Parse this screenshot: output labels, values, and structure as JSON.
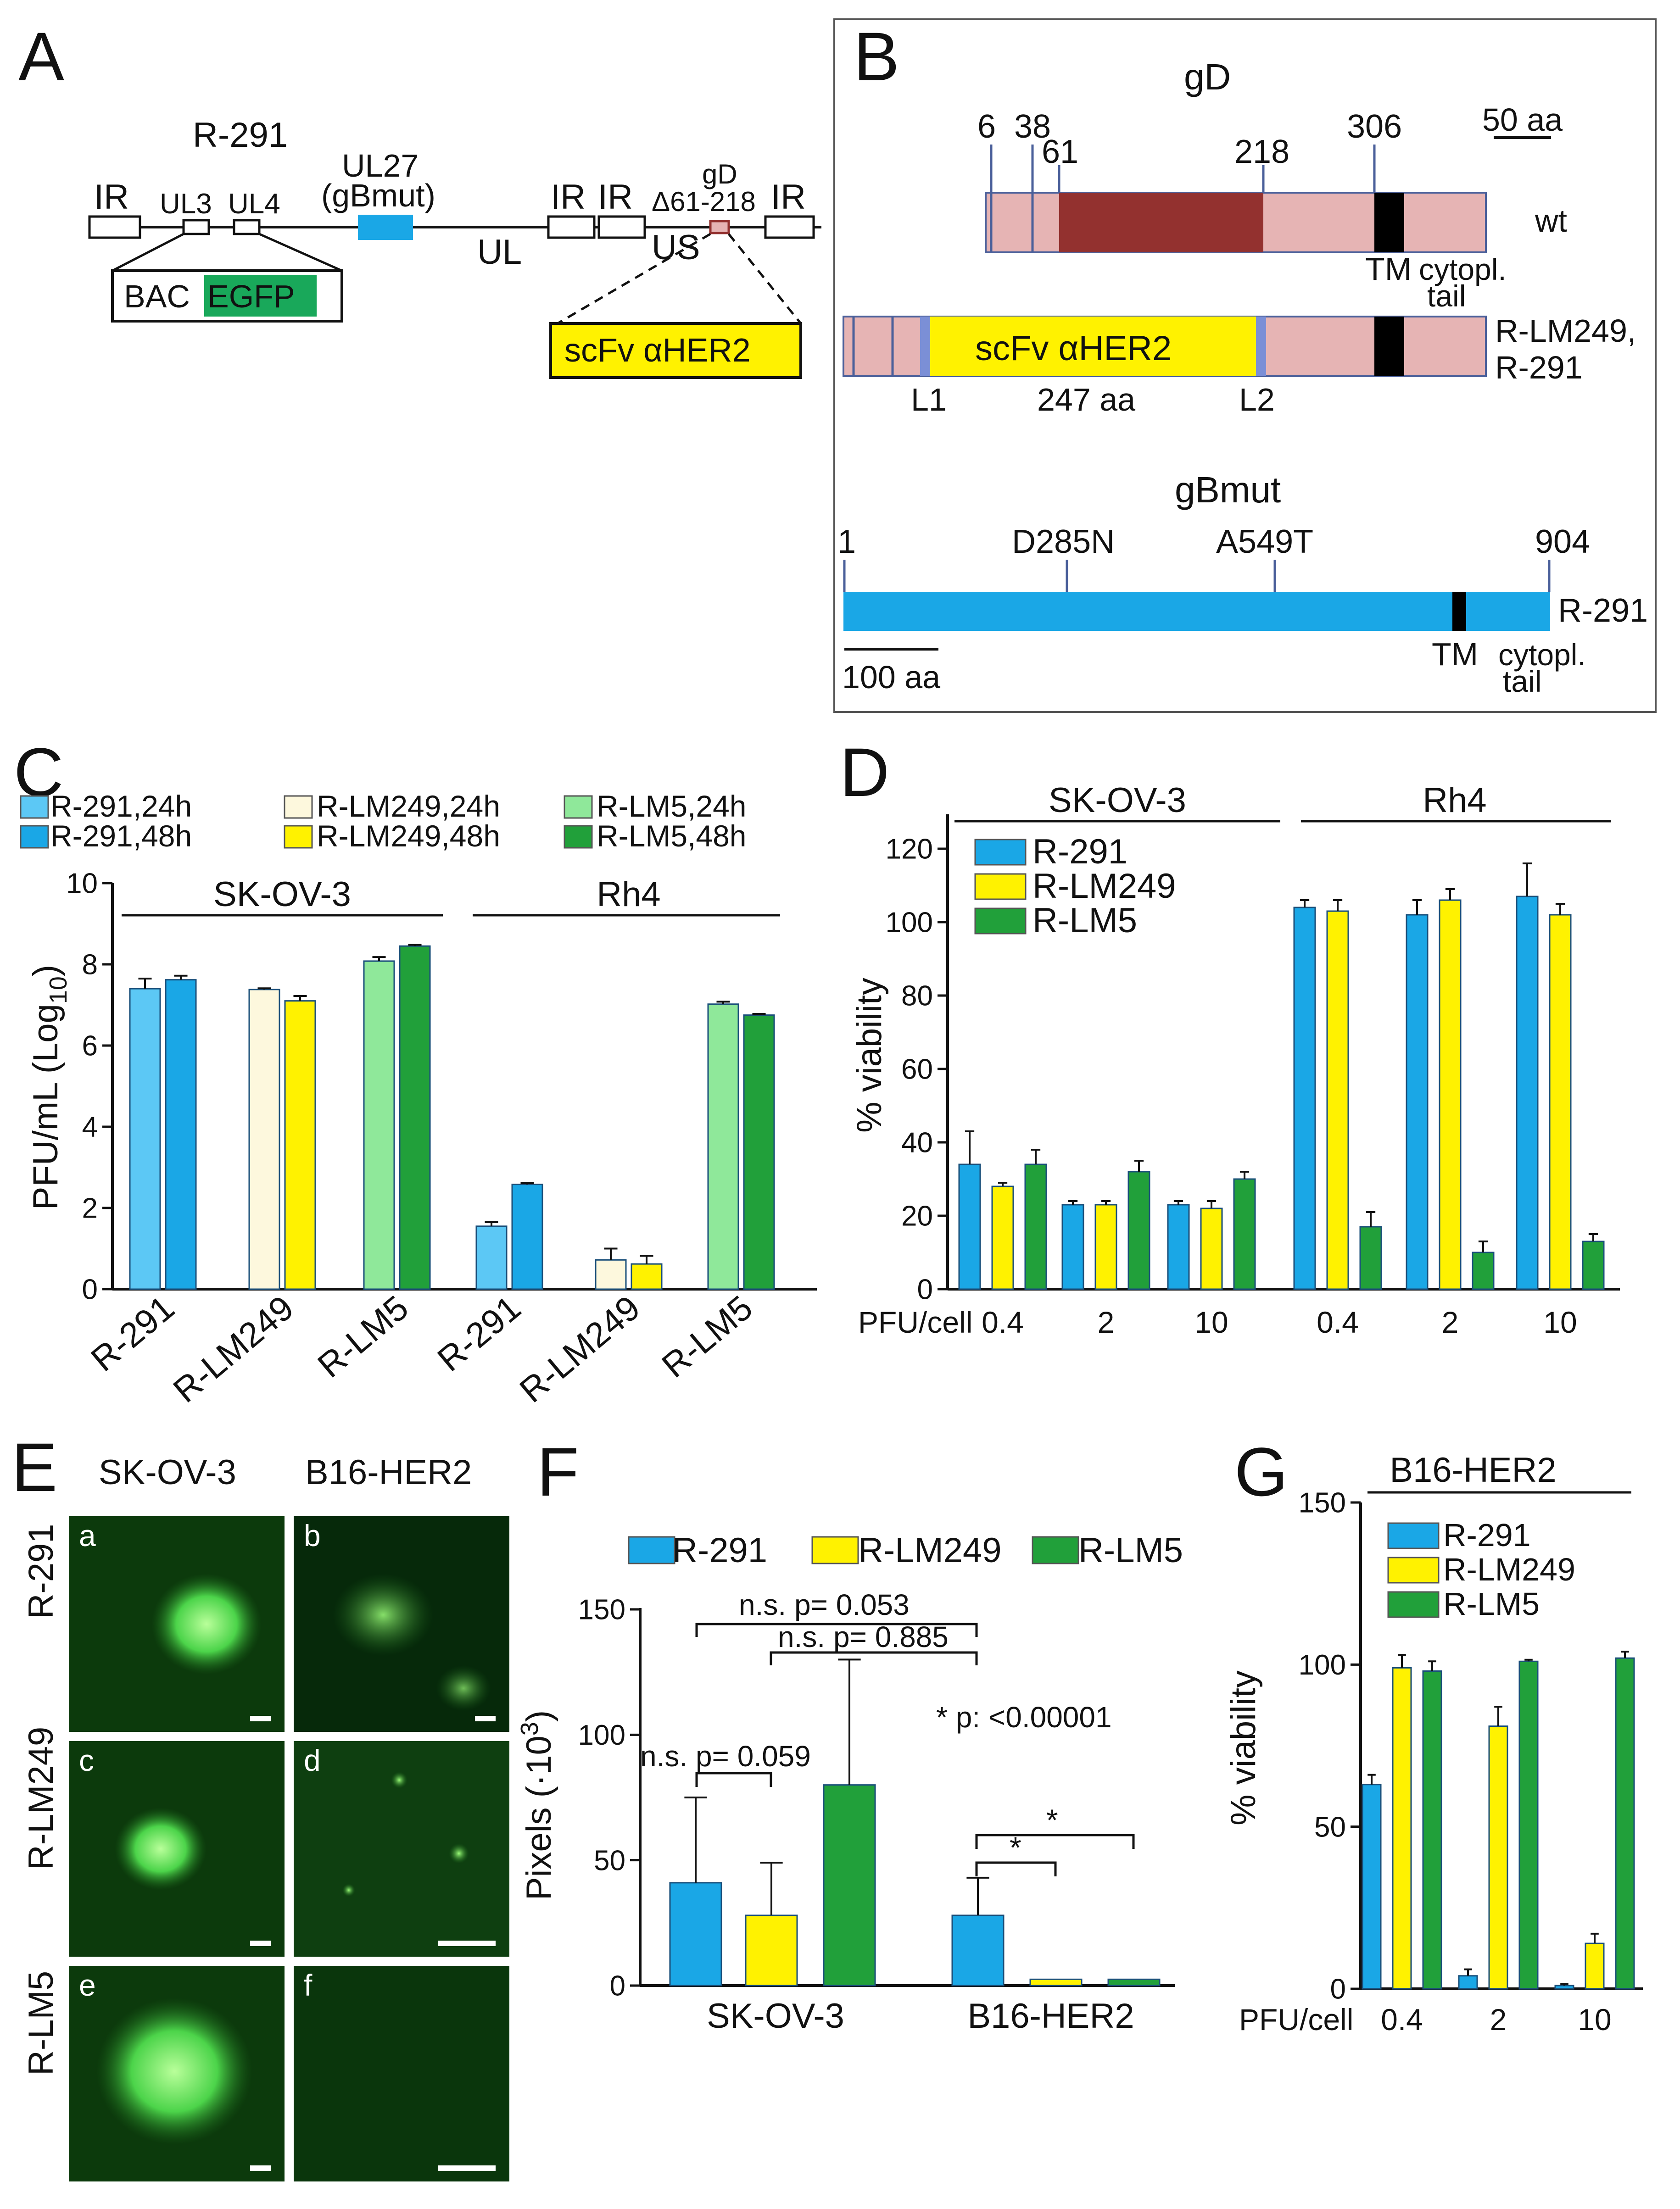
{
  "colors": {
    "r291": "#1aa7e6",
    "r291_light": "#5cc8f5",
    "lm249": "#fff200",
    "lm249_light": "#fdf8dd",
    "lm5": "#21a03a",
    "lm5_light": "#8fe89a",
    "gd_pink": "#e6b4b4",
    "gd_dark": "#93312f",
    "egfp": "#19a85a",
    "micro_bg": "#0c3a0c"
  },
  "panelA": {
    "letter": "A",
    "construct": "R-291",
    "labels": {
      "ir": "IR",
      "ul3": "UL3",
      "ul4": "UL4",
      "ul27": "UL27",
      "gbmut": "(gBmut)",
      "ul": "UL",
      "us": "US",
      "gd": "gD",
      "delta": "Δ61-218",
      "bac": "BAC",
      "egfp": "EGFP",
      "scfv": "scFv αHER2"
    }
  },
  "panelB": {
    "letter": "B",
    "gd_title": "gD",
    "scale_gd": "50 aa",
    "gd_ticks": [
      "6",
      "38",
      "61",
      "218",
      "306"
    ],
    "wt_label": "wt",
    "tm": "TM",
    "tail1": "cytopl.",
    "tail2": "tail",
    "mut_label1": "R-LM249,",
    "mut_label2": "R-291",
    "scfv": "scFv αHER2",
    "l1": "L1",
    "l2": "L2",
    "aa247": "247 aa",
    "gb_title": "gBmut",
    "gb_ticks": [
      "1",
      "D285N",
      "A549T",
      "904"
    ],
    "gb_label": "R-291",
    "scale_gb": "100 aa"
  },
  "panelC": {
    "letter": "C",
    "legend": [
      "R-291,24h",
      "R-291,48h",
      "R-LM249,24h",
      "R-LM249,48h",
      "R-LM5,24h",
      "R-LM5,48h"
    ],
    "ylabel": "PFU/mL (Log",
    "ylabel_sub": "10",
    "ylabel_end": ")",
    "yticks": [
      "0",
      "2",
      "4",
      "6",
      "8",
      "10"
    ],
    "groups": [
      "SK-OV-3",
      "Rh4"
    ],
    "xlabels": [
      "R-291",
      "R-LM249",
      "R-LM5",
      "R-291",
      "R-LM249",
      "R-LM5"
    ]
  },
  "panelD": {
    "letter": "D",
    "legend": [
      "R-291",
      "R-LM249",
      "R-LM5"
    ],
    "ylabel": "% viability",
    "yticks": [
      "0",
      "20",
      "40",
      "60",
      "80",
      "100",
      "120"
    ],
    "groups": [
      "SK-OV-3",
      "Rh4"
    ],
    "xprefix": "PFU/cell",
    "xlabels": [
      "0.4",
      "2",
      "10",
      "0.4",
      "2",
      "10"
    ]
  },
  "panelE": {
    "letter": "E",
    "cols": [
      "SK-OV-3",
      "B16-HER2"
    ],
    "rows": [
      "R-291",
      "R-LM249",
      "R-LM5"
    ],
    "tiles": [
      "a",
      "b",
      "c",
      "d",
      "e",
      "f"
    ]
  },
  "panelF": {
    "letter": "F",
    "legend": [
      "R-291",
      "R-LM249",
      "R-LM5"
    ],
    "ylabel": "Pixels (·10",
    "ylabel_sup": "3",
    "ylabel_end": ")",
    "yticks": [
      "0",
      "50",
      "100",
      "150"
    ],
    "groups": [
      "SK-OV-3",
      "B16-HER2"
    ],
    "ann1": "n.s. p= 0.053",
    "ann2": "n.s. p= 0.885",
    "ann3": "n.s. p= 0.059",
    "ann4": "* p: <0.00001",
    "star": "*"
  },
  "panelG": {
    "letter": "G",
    "title": "B16-HER2",
    "legend": [
      "R-291",
      "R-LM249",
      "R-LM5"
    ],
    "ylabel": "% viability",
    "yticks": [
      "0",
      "50",
      "100",
      "150"
    ],
    "xprefix": "PFU/cell",
    "xlabels": [
      "0.4",
      "2",
      "10"
    ]
  },
  "chart_data": [
    {
      "panel": "C",
      "type": "bar",
      "title": "",
      "ylabel": "PFU/mL (Log10)",
      "ylim": [
        0,
        10
      ],
      "categories": [
        "SK-OV-3 R-291",
        "SK-OV-3 R-LM249",
        "SK-OV-3 R-LM5",
        "Rh4 R-291",
        "Rh4 R-LM249",
        "Rh4 R-LM5"
      ],
      "series": [
        {
          "name": "24h",
          "values": [
            7.4,
            7.38,
            8.08,
            1.55,
            0.72,
            7.02
          ],
          "errors": [
            0.25,
            0.03,
            0.1,
            0.1,
            0.28,
            0.06
          ]
        },
        {
          "name": "48h",
          "values": [
            7.62,
            7.1,
            8.45,
            2.58,
            0.62,
            6.75
          ],
          "errors": [
            0.1,
            0.12,
            0.03,
            0.03,
            0.2,
            0.03
          ]
        }
      ]
    },
    {
      "panel": "D",
      "type": "bar",
      "ylabel": "% viability",
      "ylim": [
        0,
        120
      ],
      "categories": [
        "SK-OV-3 0.4",
        "SK-OV-3 2",
        "SK-OV-3 10",
        "Rh4 0.4",
        "Rh4 2",
        "Rh4 10"
      ],
      "series": [
        {
          "name": "R-291",
          "values": [
            34,
            23,
            23,
            104,
            102,
            107
          ],
          "errors": [
            9,
            1,
            1,
            2,
            4,
            9
          ]
        },
        {
          "name": "R-LM249",
          "values": [
            28,
            23,
            22,
            103,
            106,
            102
          ],
          "errors": [
            1,
            1,
            2,
            3,
            3,
            3
          ]
        },
        {
          "name": "R-LM5",
          "values": [
            34,
            32,
            30,
            17,
            10,
            13
          ],
          "errors": [
            4,
            3,
            2,
            4,
            3,
            2
          ]
        }
      ]
    },
    {
      "panel": "F",
      "type": "bar",
      "ylabel": "Pixels (·10^3)",
      "ylim": [
        0,
        150
      ],
      "categories": [
        "SK-OV-3",
        "B16-HER2"
      ],
      "series": [
        {
          "name": "R-291",
          "values": [
            41,
            28
          ],
          "errors": [
            34,
            15
          ]
        },
        {
          "name": "R-LM249",
          "values": [
            28,
            2.5
          ],
          "errors": [
            21,
            0
          ]
        },
        {
          "name": "R-LM5",
          "values": [
            80,
            2.5
          ],
          "errors": [
            50,
            0
          ]
        }
      ]
    },
    {
      "panel": "G",
      "type": "bar",
      "title": "B16-HER2",
      "ylabel": "% viability",
      "ylim": [
        0,
        150
      ],
      "categories": [
        "0.4",
        "2",
        "10"
      ],
      "series": [
        {
          "name": "R-291",
          "values": [
            63,
            4,
            1
          ],
          "errors": [
            3,
            2,
            0.5
          ]
        },
        {
          "name": "R-LM249",
          "values": [
            99,
            81,
            14
          ],
          "errors": [
            4,
            6,
            3
          ]
        },
        {
          "name": "R-LM5",
          "values": [
            98,
            101,
            102
          ],
          "errors": [
            3,
            0.5,
            2
          ]
        }
      ]
    }
  ]
}
